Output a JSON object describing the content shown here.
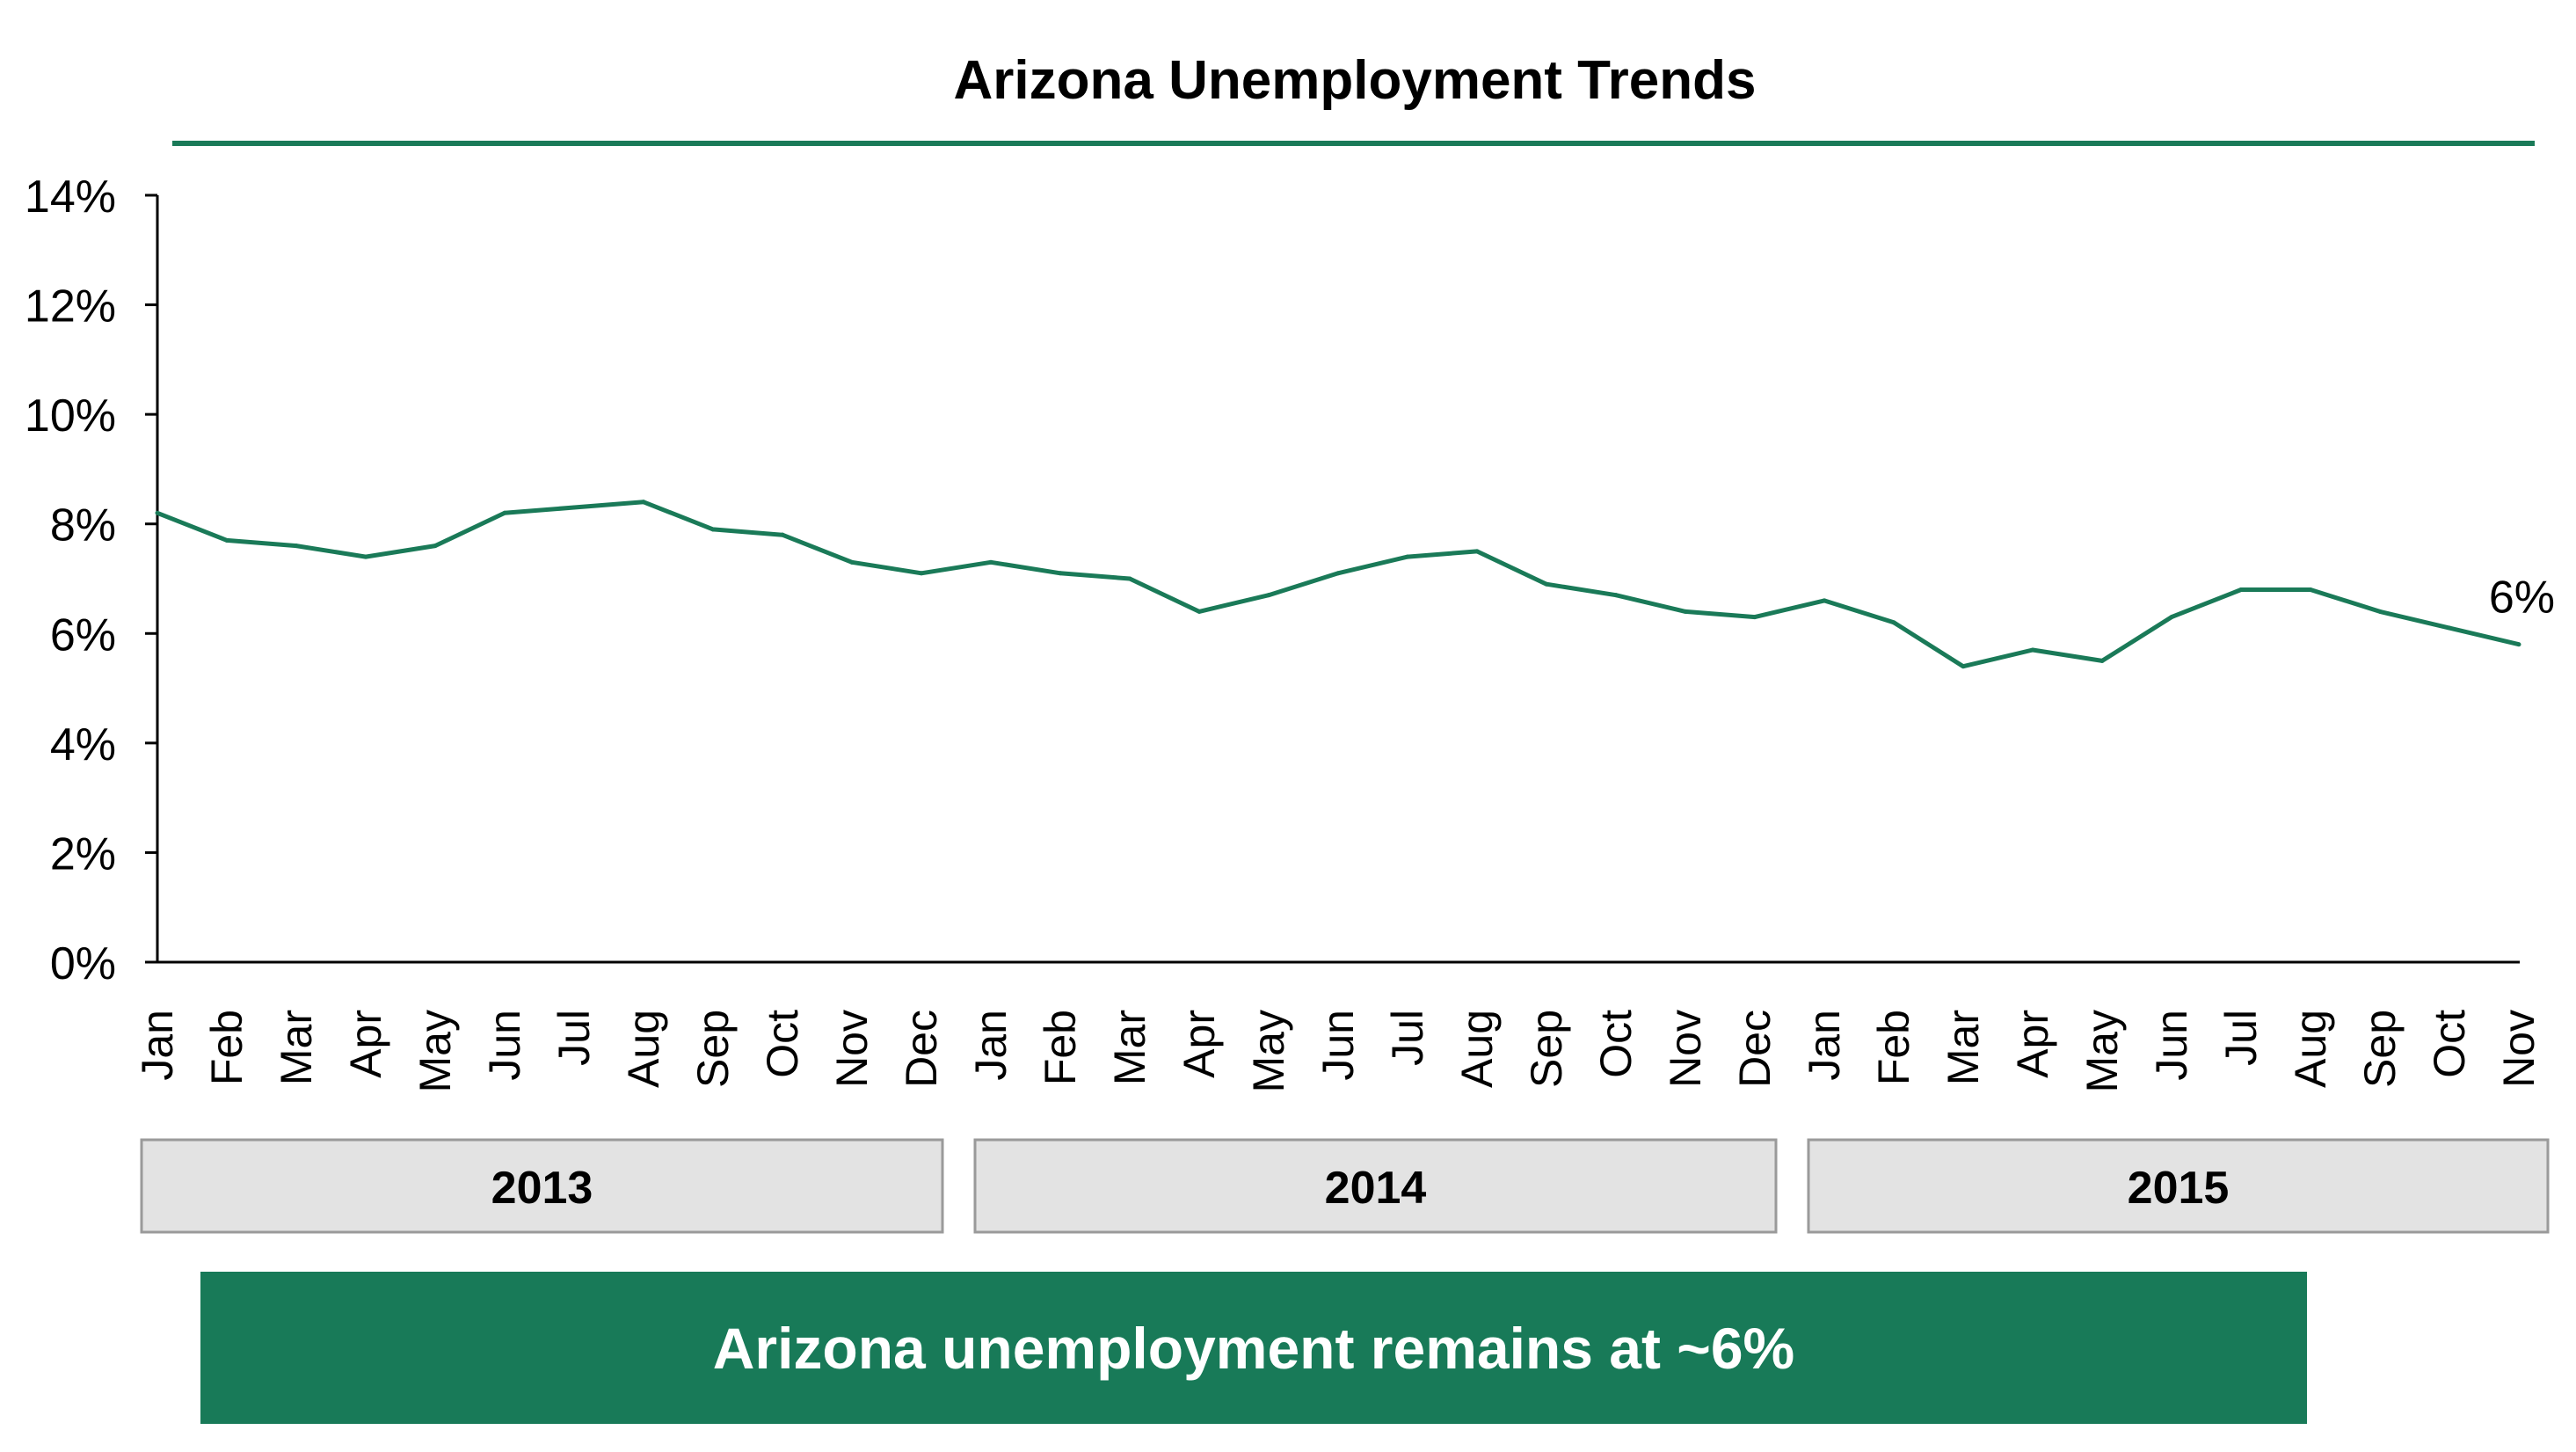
{
  "chart_data": {
    "type": "line",
    "title": "Arizona Unemployment Trends",
    "xlabel": "",
    "ylabel": "",
    "ylim": [
      0,
      14
    ],
    "y_ticks": [
      "0%",
      "2%",
      "4%",
      "6%",
      "8%",
      "10%",
      "12%",
      "14%"
    ],
    "y_tick_values": [
      0,
      2,
      4,
      6,
      8,
      10,
      12,
      14
    ],
    "x": [
      "Jan",
      "Feb",
      "Mar",
      "Apr",
      "May",
      "Jun",
      "Jul",
      "Aug",
      "Sep",
      "Oct",
      "Nov",
      "Dec",
      "Jan",
      "Feb",
      "Mar",
      "Apr",
      "May",
      "Jun",
      "Jul",
      "Aug",
      "Sep",
      "Oct",
      "Nov",
      "Dec",
      "Jan",
      "Feb",
      "Mar",
      "Apr",
      "May",
      "Jun",
      "Jul",
      "Aug",
      "Sep",
      "Oct",
      "Nov"
    ],
    "year_groups": [
      {
        "label": "2013",
        "months": 12
      },
      {
        "label": "2014",
        "months": 12
      },
      {
        "label": "2015",
        "months": 11
      }
    ],
    "series": [
      {
        "values": [
          8.2,
          7.7,
          7.6,
          7.4,
          7.6,
          8.2,
          8.3,
          8.4,
          7.9,
          7.8,
          7.3,
          7.1,
          7.3,
          7.1,
          7.0,
          6.4,
          6.7,
          7.1,
          7.4,
          7.5,
          6.9,
          6.7,
          6.4,
          6.3,
          6.6,
          6.2,
          5.4,
          5.7,
          5.5,
          6.3,
          6.8,
          6.8,
          6.4,
          6.1,
          5.8
        ]
      }
    ],
    "end_label": "6%",
    "grid": false,
    "legend": "none"
  },
  "callout": {
    "text": "Arizona unemployment remains at ~6%"
  },
  "colors": {
    "line": "#1a7a58",
    "title_rule": "#1a7a58",
    "callout_bg": "#187a58",
    "year_box_bg": "#e3e3e3",
    "year_box_border": "#9a9a9a",
    "axis": "#000000"
  }
}
